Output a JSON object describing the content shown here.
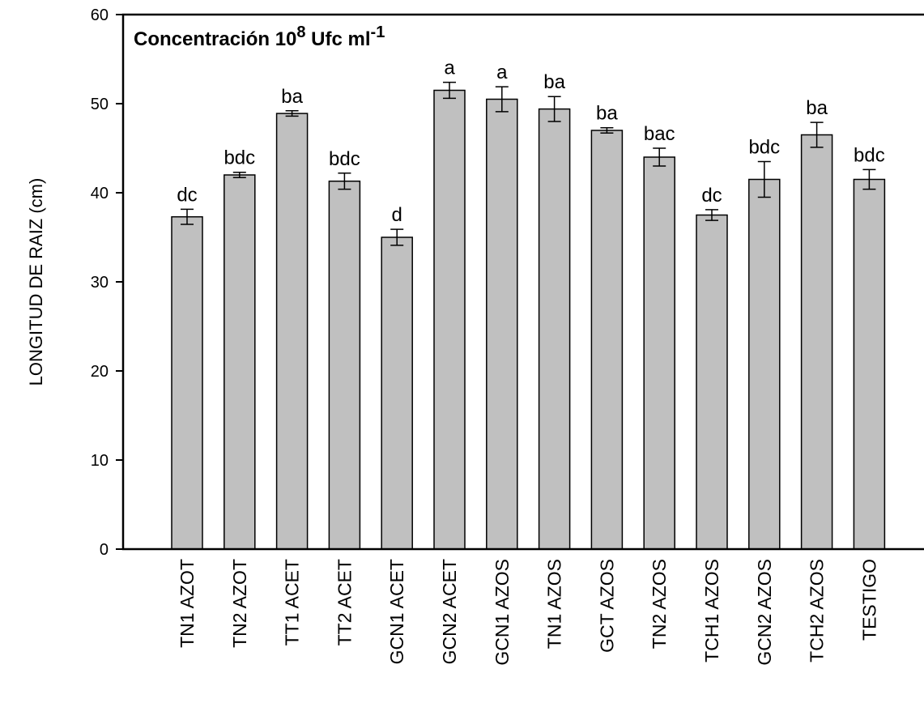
{
  "chart_data": {
    "type": "bar",
    "title": [
      "Concentración 10",
      "8",
      " Ufc ml",
      "-1"
    ],
    "ylabel": "LONGITUD DE RAIZ (cm)",
    "categories": [
      "TN1 AZOT",
      "TN2 AZOT",
      "TT1 ACET",
      "TT2 ACET",
      "GCN1 ACET",
      "GCN2 ACET",
      "GCN1 AZOS",
      "TN1 AZOS",
      "GCT AZOS",
      "TN2 AZOS",
      "TCH1 AZOS",
      "GCN2 AZOS",
      "TCH2 AZOS",
      "TESTIGO"
    ],
    "values": [
      37.3,
      42.0,
      48.9,
      41.3,
      35.0,
      51.5,
      50.5,
      49.4,
      47.0,
      44.0,
      37.5,
      41.5,
      46.5,
      41.5
    ],
    "errors": [
      0.85,
      0.3,
      0.3,
      0.9,
      0.9,
      0.9,
      1.4,
      1.4,
      0.3,
      1.0,
      0.6,
      2.0,
      1.4,
      1.1
    ],
    "letters": [
      "dc",
      "bdc",
      "ba",
      "bdc",
      "d",
      "a",
      "a",
      "ba",
      "ba",
      "bac",
      "dc",
      "bdc",
      "ba",
      "bdc"
    ],
    "color": "#c0c0c0",
    "ylim": [
      0,
      60
    ],
    "yticks": [
      0,
      10,
      20,
      30,
      40,
      50,
      60
    ]
  }
}
